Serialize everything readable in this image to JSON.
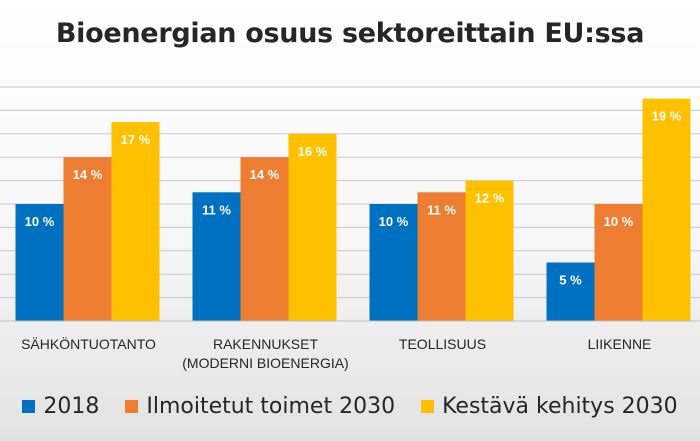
{
  "chart_data": {
    "type": "bar",
    "title": "Bioenergian osuus sektoreittain EU:ssa",
    "categories": [
      {
        "line1": "SÄHKÖNTUOTANTO",
        "line2": ""
      },
      {
        "line1": "RAKENNUKSET",
        "line2": "(MODERNI BIOENERGIA)"
      },
      {
        "line1": "TEOLLISUUS",
        "line2": ""
      },
      {
        "line1": "LIIKENNE",
        "line2": ""
      }
    ],
    "series": [
      {
        "name": "2018",
        "color": "#0070c0",
        "values": [
          10,
          11,
          10,
          5
        ],
        "labels": [
          "10 %",
          "11 %",
          "10 %",
          "5 %"
        ]
      },
      {
        "name": "Ilmoitetut toimet 2030",
        "color": "#ed7d31",
        "values": [
          14,
          14,
          11,
          10
        ],
        "labels": [
          "14 %",
          "14 %",
          "11 %",
          "10 %"
        ]
      },
      {
        "name": "Kestävä kehitys 2030",
        "color": "#ffc000",
        "values": [
          17,
          16,
          12,
          19
        ],
        "labels": [
          "17 %",
          "16 %",
          "12 %",
          "19 %"
        ]
      }
    ],
    "ylim": [
      0,
      20
    ],
    "grid": true,
    "legend_position": "bottom"
  }
}
